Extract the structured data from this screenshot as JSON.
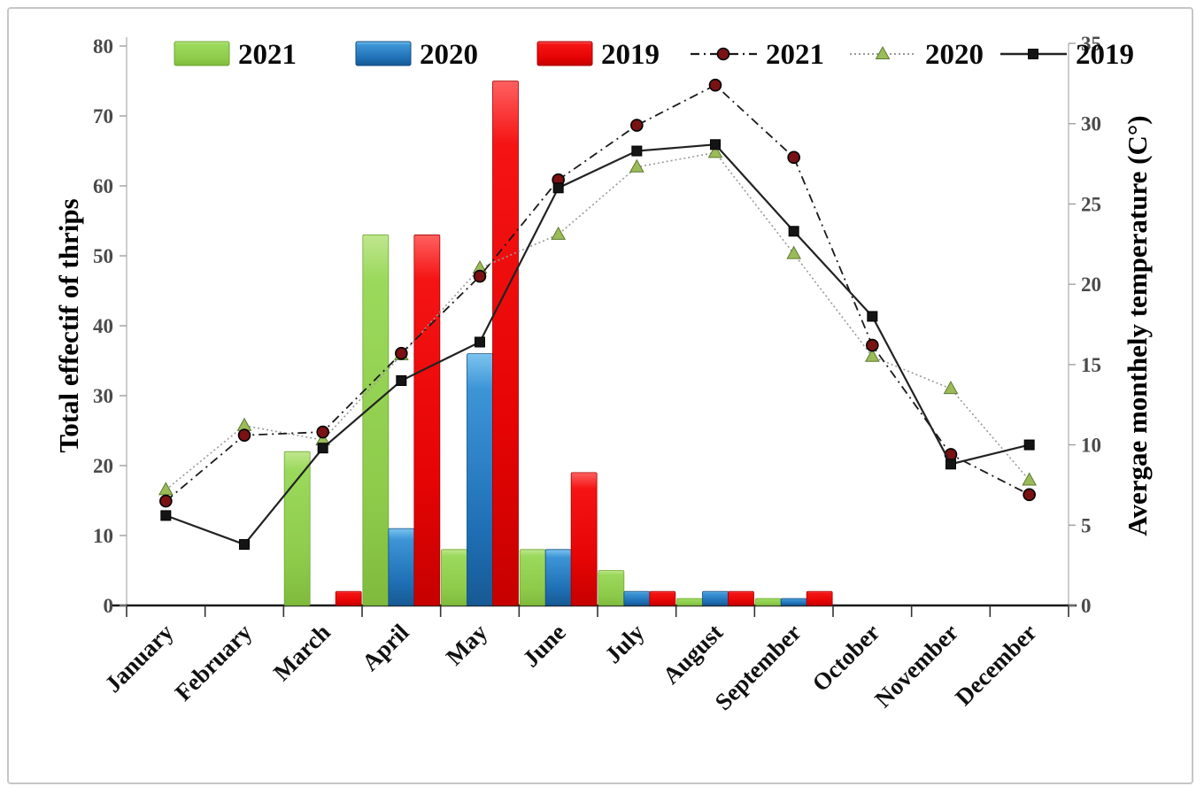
{
  "chart_data": {
    "type": "combo-bar-line",
    "categories": [
      "January",
      "February",
      "March",
      "April",
      "May",
      "June",
      "July",
      "August",
      "September",
      "October",
      "November",
      "December"
    ],
    "bar_series": [
      {
        "name": "2021",
        "color": "#92d050",
        "values": [
          0,
          0,
          22,
          53,
          8,
          8,
          5,
          1,
          1,
          0,
          0,
          0
        ]
      },
      {
        "name": "2020",
        "color": "#2179bd",
        "values": [
          0,
          0,
          0,
          11,
          36,
          8,
          2,
          2,
          1,
          0,
          0,
          0
        ]
      },
      {
        "name": "2019",
        "color": "#ee1111",
        "values": [
          0,
          0,
          2,
          53,
          75,
          19,
          2,
          2,
          2,
          0,
          0,
          0
        ]
      }
    ],
    "line_series": [
      {
        "name": "2021",
        "style": "dash-dot",
        "line_color": "#1a1a1a",
        "marker": "circle",
        "marker_color": "#7a1113",
        "values": [
          6.5,
          10.6,
          10.8,
          15.7,
          20.5,
          26.5,
          29.9,
          32.4,
          27.9,
          16.2,
          9.4,
          6.9
        ]
      },
      {
        "name": "2020",
        "style": "dotted",
        "line_color": "#9a9a9a",
        "marker": "triangle",
        "marker_color": "#9bbb59",
        "values": [
          7.2,
          11.2,
          10.3,
          15.6,
          21.0,
          23.1,
          27.3,
          28.2,
          21.9,
          15.5,
          13.5,
          7.8
        ]
      },
      {
        "name": "2019",
        "style": "solid",
        "line_color": "#222222",
        "marker": "square",
        "marker_color": "#141414",
        "values": [
          5.6,
          3.8,
          9.8,
          14.0,
          16.4,
          26.0,
          28.3,
          28.7,
          23.3,
          18.0,
          8.8,
          10.0
        ]
      }
    ],
    "ylabel_left": "Total effectif of thrips",
    "ylabel_right": "Avergae monthely temperature (C°)",
    "xlabel": "",
    "title": "",
    "ylim_left": [
      0,
      80
    ],
    "ytick_step_left": 10,
    "ylim_right": [
      0,
      35
    ],
    "ytick_step_right": 5,
    "grid": false,
    "legend_position": "top"
  }
}
